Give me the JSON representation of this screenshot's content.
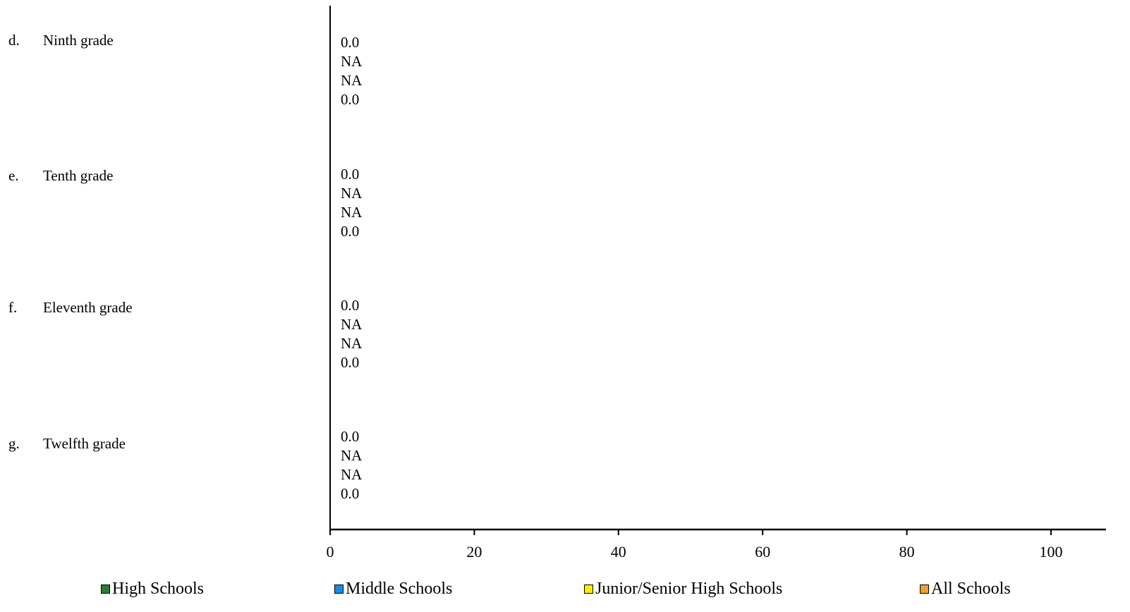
{
  "chart_data": {
    "type": "bar",
    "orientation": "horizontal",
    "categories": [
      {
        "letter": "d.",
        "label": "Ninth grade"
      },
      {
        "letter": "e.",
        "label": "Tenth grade"
      },
      {
        "letter": "f.",
        "label": "Eleventh grade"
      },
      {
        "letter": "g.",
        "label": "Twelfth grade"
      }
    ],
    "series": [
      {
        "name": "High Schools",
        "color": "#2e7d32",
        "values": [
          0.0,
          0.0,
          0.0,
          0.0
        ],
        "labels": [
          "0.0",
          "0.0",
          "0.0",
          "0.0"
        ]
      },
      {
        "name": "Middle Schools",
        "color": "#1e88e5",
        "values": [
          null,
          null,
          null,
          null
        ],
        "labels": [
          "NA",
          "NA",
          "NA",
          "NA"
        ]
      },
      {
        "name": "Junior/Senior High Schools",
        "color": "#ffee00",
        "values": [
          null,
          null,
          null,
          null
        ],
        "labels": [
          "NA",
          "NA",
          "NA",
          "NA"
        ]
      },
      {
        "name": "All Schools",
        "color": "#f0a030",
        "values": [
          0.0,
          0.0,
          0.0,
          0.0
        ],
        "labels": [
          "0.0",
          "0.0",
          "0.0",
          "0.0"
        ]
      }
    ],
    "xlim": [
      0,
      100
    ],
    "xticks": [
      "0",
      "20",
      "40",
      "60",
      "80",
      "100"
    ],
    "grid": false,
    "legend_position": "bottom"
  }
}
